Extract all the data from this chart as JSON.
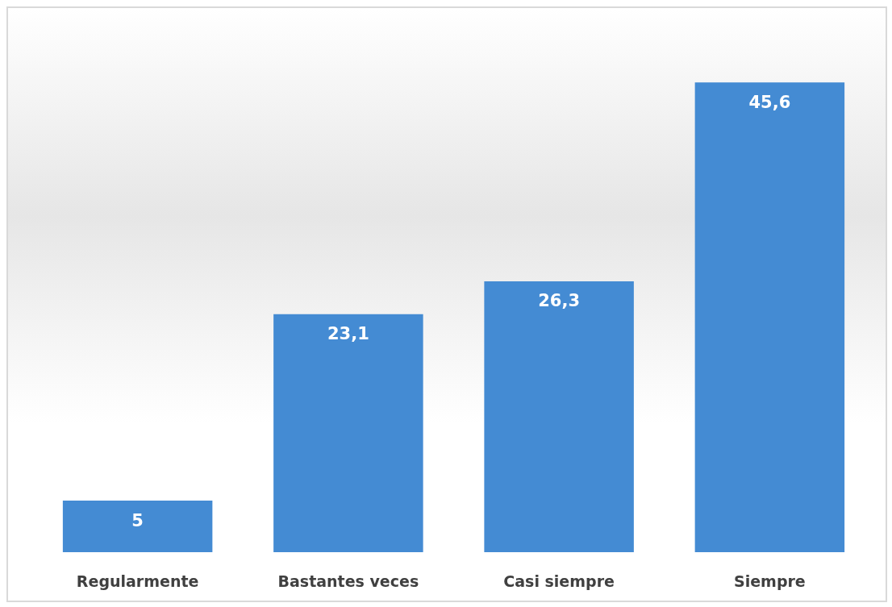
{
  "chart_data": {
    "type": "bar",
    "categories": [
      "Regularmente",
      "Bastantes veces",
      "Casi siempre",
      "Siempre"
    ],
    "values": [
      5,
      23.1,
      26.3,
      45.6
    ],
    "value_labels": [
      "5",
      "23,1",
      "26,3",
      "45,6"
    ],
    "color": "#448bd3",
    "grid": false
  }
}
